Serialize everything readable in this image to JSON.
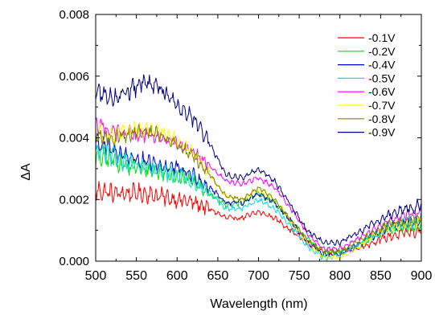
{
  "chart_data": {
    "type": "line",
    "title": "",
    "xlabel": "Wavelength (nm)",
    "ylabel": "ΔA",
    "xlim": [
      500,
      900
    ],
    "ylim": [
      0,
      0.008
    ],
    "x_ticks": [
      500,
      550,
      600,
      650,
      700,
      750,
      800,
      850,
      900
    ],
    "y_ticks": [
      0.0,
      0.002,
      0.004,
      0.006,
      0.008
    ],
    "x_tick_labels": [
      "500",
      "550",
      "600",
      "650",
      "700",
      "750",
      "800",
      "850",
      "900"
    ],
    "y_tick_labels": [
      "0.000",
      "0.002",
      "0.004",
      "0.006",
      "0.008"
    ],
    "grid": false,
    "legend_position": "top-right",
    "x": [
      500,
      520,
      540,
      560,
      580,
      600,
      620,
      640,
      660,
      680,
      700,
      720,
      740,
      760,
      780,
      800,
      820,
      840,
      860,
      880,
      900
    ],
    "series": [
      {
        "name": "-0.1V",
        "color": "#ff0000",
        "noise": 0.00025,
        "values": [
          0.0023,
          0.0022,
          0.0022,
          0.0022,
          0.0021,
          0.002,
          0.0019,
          0.0017,
          0.0014,
          0.0014,
          0.0016,
          0.0014,
          0.001,
          0.0006,
          0.0003,
          0.0003,
          0.0004,
          0.0006,
          0.0008,
          0.0009,
          0.001
        ]
      },
      {
        "name": "-0.2V",
        "color": "#00dd00",
        "noise": 0.00025,
        "values": [
          0.0034,
          0.0033,
          0.0031,
          0.003,
          0.0029,
          0.0028,
          0.0026,
          0.0022,
          0.0018,
          0.0019,
          0.0022,
          0.0019,
          0.0013,
          0.0007,
          0.0003,
          0.0003,
          0.0005,
          0.0008,
          0.001,
          0.0011,
          0.0012
        ]
      },
      {
        "name": "-0.4V",
        "color": "#0000cc",
        "noise": 0.00025,
        "values": [
          0.0039,
          0.0036,
          0.0034,
          0.0032,
          0.0031,
          0.003,
          0.0028,
          0.0024,
          0.0019,
          0.0019,
          0.0022,
          0.0019,
          0.0013,
          0.0006,
          0.0002,
          0.0002,
          0.0005,
          0.0008,
          0.0011,
          0.0012,
          0.0013
        ]
      },
      {
        "name": "-0.5V",
        "color": "#00dddd",
        "noise": 0.00025,
        "values": [
          0.0036,
          0.0034,
          0.0032,
          0.003,
          0.0029,
          0.0028,
          0.0026,
          0.0022,
          0.0017,
          0.0017,
          0.002,
          0.0017,
          0.0011,
          0.0005,
          0.0001,
          0.0002,
          0.0005,
          0.0008,
          0.0011,
          0.0012,
          0.0013
        ]
      },
      {
        "name": "-0.6V",
        "color": "#ff00ff",
        "noise": 0.00022,
        "values": [
          0.0045,
          0.0042,
          0.0041,
          0.0041,
          0.004,
          0.0038,
          0.0035,
          0.0031,
          0.0026,
          0.0025,
          0.0027,
          0.0024,
          0.0017,
          0.0009,
          0.0004,
          0.0004,
          0.0007,
          0.001,
          0.0013,
          0.0015,
          0.0016
        ]
      },
      {
        "name": "-0.7V",
        "color": "#ffff00",
        "noise": 0.00022,
        "values": [
          0.0042,
          0.0041,
          0.0042,
          0.0043,
          0.0042,
          0.0039,
          0.0035,
          0.0028,
          0.0021,
          0.002,
          0.0023,
          0.002,
          0.0013,
          0.0006,
          0.0001,
          0.0001,
          0.0004,
          0.0008,
          0.0011,
          0.0012,
          0.0013
        ]
      },
      {
        "name": "-0.8V",
        "color": "#808000",
        "noise": 0.00022,
        "values": [
          0.004,
          0.004,
          0.0041,
          0.0042,
          0.0041,
          0.0038,
          0.0034,
          0.0028,
          0.0021,
          0.002,
          0.0024,
          0.002,
          0.0013,
          0.0007,
          0.0003,
          0.0003,
          0.0006,
          0.0009,
          0.0012,
          0.0013,
          0.0014
        ]
      },
      {
        "name": "-0.9V",
        "color": "#000080",
        "noise": 0.00025,
        "values": [
          0.0055,
          0.0053,
          0.0055,
          0.0058,
          0.0056,
          0.0051,
          0.0046,
          0.0038,
          0.0028,
          0.0027,
          0.003,
          0.0026,
          0.0018,
          0.001,
          0.0006,
          0.0006,
          0.0009,
          0.0012,
          0.0015,
          0.0017,
          0.0018
        ]
      }
    ]
  }
}
